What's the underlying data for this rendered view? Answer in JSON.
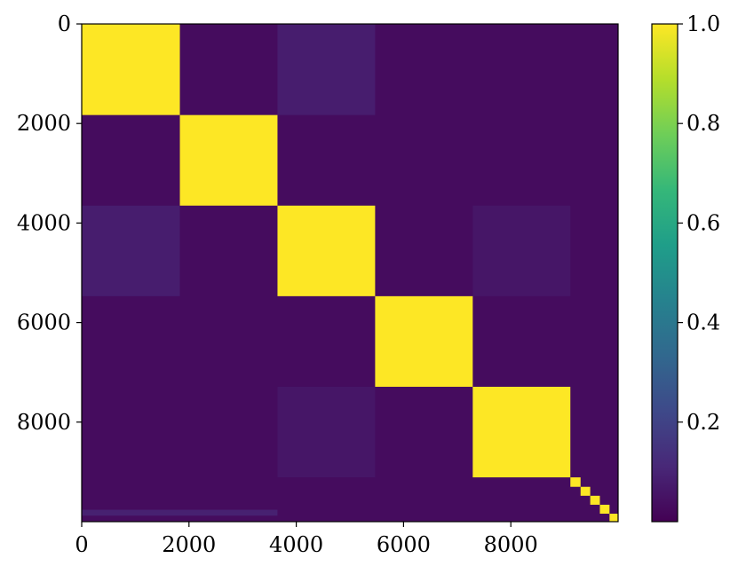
{
  "chart_data": {
    "type": "heatmap",
    "title": "",
    "xlabel": "",
    "ylabel": "",
    "n": 10000,
    "xlim": [
      0,
      10000
    ],
    "ylim": [
      0,
      10000
    ],
    "x_ticks": [
      0,
      2000,
      4000,
      6000,
      8000
    ],
    "x_tick_labels": [
      "0",
      "2000",
      "4000",
      "6000",
      "8000"
    ],
    "y_ticks": [
      0,
      2000,
      4000,
      6000,
      8000
    ],
    "y_tick_labels": [
      "0",
      "2000",
      "4000",
      "6000",
      "8000"
    ],
    "colormap": "viridis",
    "colorbar": {
      "range": [
        0.0,
        1.0
      ],
      "ticks": [
        0.2,
        0.4,
        0.6,
        0.8,
        1.0
      ],
      "tick_labels": [
        "0.2",
        "0.4",
        "0.6",
        "0.8",
        "1.0"
      ]
    },
    "block_boundaries": [
      0,
      1830,
      3650,
      5470,
      7290,
      9110,
      9300,
      9480,
      9660,
      9840,
      10000
    ],
    "off_diagonal_value": 0.03,
    "diagonal_value": 1.0,
    "highlighted_offdiag": [
      {
        "rows": [
          0,
          1830
        ],
        "cols": [
          3650,
          5470
        ],
        "value": 0.08
      },
      {
        "rows": [
          3650,
          5470
        ],
        "cols": [
          0,
          1830
        ],
        "value": 0.08
      },
      {
        "rows": [
          3650,
          5470
        ],
        "cols": [
          7290,
          9110
        ],
        "value": 0.06
      },
      {
        "rows": [
          7290,
          9110
        ],
        "cols": [
          3650,
          5470
        ],
        "value": 0.06
      },
      {
        "rows": [
          9760,
          9880
        ],
        "cols": [
          0,
          3650
        ],
        "value": 0.09
      }
    ]
  },
  "colors": {
    "viridis": [
      "#440154",
      "#482878",
      "#3e4989",
      "#31688e",
      "#26828e",
      "#1f9e89",
      "#35b779",
      "#6ece58",
      "#b5de2b",
      "#fde725"
    ]
  }
}
